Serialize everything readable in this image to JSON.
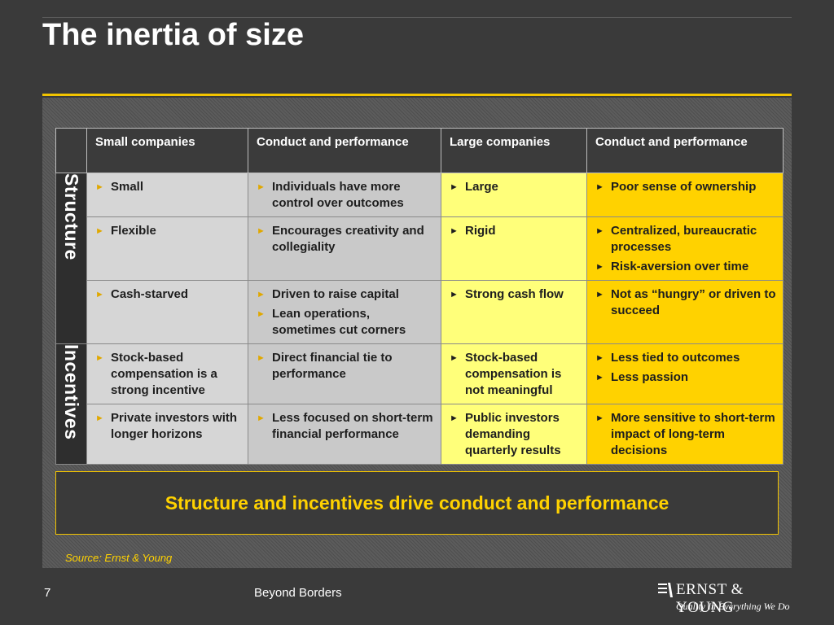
{
  "slide": {
    "title": "The inertia of size",
    "callout": "Structure and incentives drive conduct and performance",
    "source": "Source: Ernst & Young",
    "page_number": "7",
    "footer_title": "Beyond Borders"
  },
  "logo": {
    "name": "ERNST & YOUNG",
    "tagline": "Quality In Everything We Do"
  },
  "colors": {
    "accent_gold": "#ffd200",
    "light_yellow": "#ffff7a",
    "grey_cell": "#d6d6d6",
    "background": "#3a3a3a"
  },
  "table": {
    "headers": [
      "Small companies",
      "Conduct and performance",
      "Large companies",
      "Conduct and performance"
    ],
    "groups": [
      "Structure",
      "Incentives"
    ],
    "rows": [
      {
        "small": [
          "Small"
        ],
        "small_conduct": [
          "Individuals have more control over outcomes"
        ],
        "large": [
          "Large"
        ],
        "large_conduct": [
          "Poor sense of ownership"
        ]
      },
      {
        "small": [
          "Flexible"
        ],
        "small_conduct": [
          "Encourages creativity and collegiality"
        ],
        "large": [
          "Rigid"
        ],
        "large_conduct": [
          "Centralized, bureaucratic processes",
          "Risk-aversion over time"
        ]
      },
      {
        "small": [
          "Cash-starved"
        ],
        "small_conduct": [
          "Driven to raise capital",
          "Lean operations, sometimes cut corners"
        ],
        "large": [
          "Strong cash flow"
        ],
        "large_conduct": [
          "Not as “hungry” or driven to succeed"
        ]
      },
      {
        "small": [
          "Stock-based compensation is a strong incentive"
        ],
        "small_conduct": [
          "Direct financial tie to performance"
        ],
        "large": [
          "Stock-based compensation is not meaningful"
        ],
        "large_conduct": [
          "Less tied to outcomes",
          "Less passion"
        ]
      },
      {
        "small": [
          "Private investors with longer horizons"
        ],
        "small_conduct": [
          "Less focused on short-term financial performance"
        ],
        "large": [
          "Public investors demanding quarterly results"
        ],
        "large_conduct": [
          "More sensitive to short-term impact of long-term decisions"
        ]
      }
    ]
  }
}
